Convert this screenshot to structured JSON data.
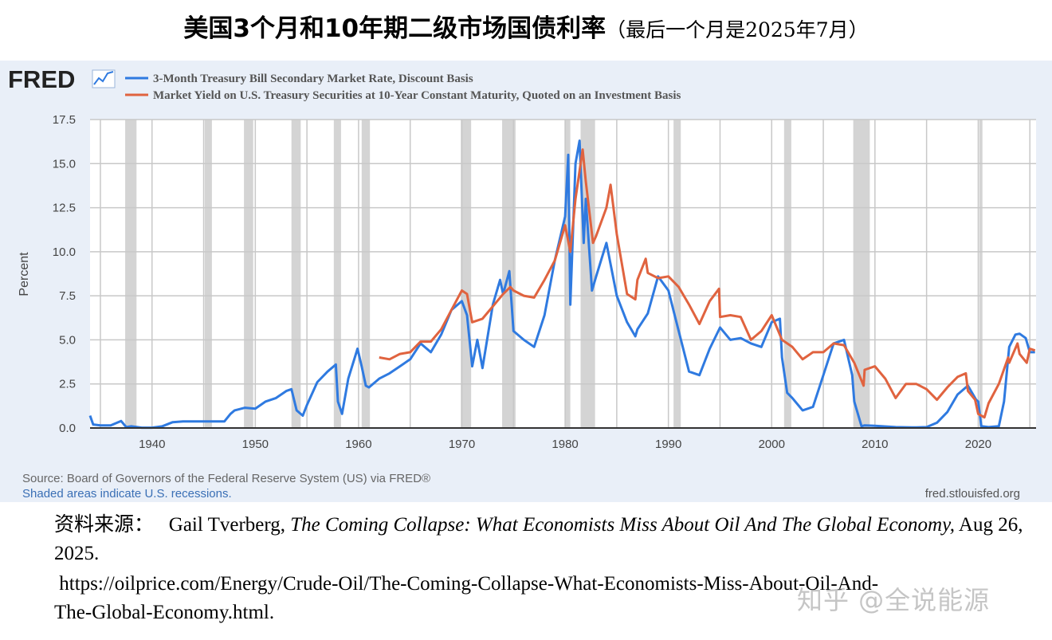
{
  "page_title": {
    "main": "美国3个月和10年期二级市场国债利率",
    "sub": "（最后一个月是2025年7月）"
  },
  "fred": {
    "logo_text": "FRED",
    "source_note": "Source: Board of Governors of the Federal Reserve System (US) via FRED®",
    "shading_note": "Shaded areas indicate U.S. recessions.",
    "site": "fred.stlouisfed.org"
  },
  "citation": {
    "label": "资料来源：",
    "author": "Gail Tverberg, ",
    "work_title": "The Coming Collapse: What Economists Miss About Oil And The Global Economy,",
    "date": " Aug 26, 2025.",
    "url_part1": "https://oilprice.com/Energy/Crude-Oil/The-Coming-Collapse-What-Economists-Miss-About-Oil-And-",
    "url_part2": "The-Global-Economy.html."
  },
  "watermark": "知乎 @全说能源",
  "chart_data": {
    "type": "line",
    "title": "",
    "xlabel": "",
    "ylabel": "Percent",
    "xlim": [
      1934,
      2025.6
    ],
    "ylim": [
      0,
      17.5
    ],
    "x_ticks": [
      1940,
      1950,
      1960,
      1970,
      1980,
      1990,
      2000,
      2010,
      2020
    ],
    "y_ticks": [
      "0.0",
      "2.5",
      "5.0",
      "7.5",
      "10.0",
      "12.5",
      "15.0",
      "17.5"
    ],
    "grid": true,
    "legend_position": "top-left",
    "recessions": [
      [
        1937.4,
        1938.5
      ],
      [
        1945.1,
        1945.8
      ],
      [
        1948.9,
        1949.8
      ],
      [
        1953.5,
        1954.4
      ],
      [
        1957.6,
        1958.3
      ],
      [
        1960.3,
        1961.1
      ],
      [
        1969.9,
        1970.9
      ],
      [
        1973.9,
        1975.2
      ],
      [
        1980.0,
        1980.5
      ],
      [
        1981.5,
        1982.9
      ],
      [
        1990.5,
        1991.2
      ],
      [
        2001.2,
        2001.9
      ],
      [
        2007.9,
        2009.5
      ],
      [
        2020.1,
        2020.3
      ]
    ],
    "series": [
      {
        "name": "3-Month Treasury Bill Secondary Market Rate, Discount Basis",
        "color": "#2f7ae0",
        "points": [
          [
            1934,
            0.7
          ],
          [
            1934.3,
            0.2
          ],
          [
            1935,
            0.15
          ],
          [
            1936,
            0.15
          ],
          [
            1937,
            0.4
          ],
          [
            1937.5,
            0.05
          ],
          [
            1938,
            0.1
          ],
          [
            1939,
            0.02
          ],
          [
            1940,
            0.02
          ],
          [
            1941,
            0.1
          ],
          [
            1942,
            0.33
          ],
          [
            1943,
            0.37
          ],
          [
            1945,
            0.37
          ],
          [
            1947,
            0.37
          ],
          [
            1947.6,
            0.8
          ],
          [
            1948,
            1.0
          ],
          [
            1949,
            1.15
          ],
          [
            1950,
            1.1
          ],
          [
            1951,
            1.5
          ],
          [
            1952,
            1.7
          ],
          [
            1953,
            2.1
          ],
          [
            1953.5,
            2.2
          ],
          [
            1954,
            1.0
          ],
          [
            1954.6,
            0.7
          ],
          [
            1955,
            1.3
          ],
          [
            1956,
            2.6
          ],
          [
            1957,
            3.2
          ],
          [
            1957.8,
            3.6
          ],
          [
            1958,
            1.5
          ],
          [
            1958.4,
            0.8
          ],
          [
            1959,
            2.8
          ],
          [
            1959.9,
            4.5
          ],
          [
            1960.3,
            3.5
          ],
          [
            1960.7,
            2.4
          ],
          [
            1961,
            2.3
          ],
          [
            1962,
            2.8
          ],
          [
            1963,
            3.1
          ],
          [
            1964,
            3.5
          ],
          [
            1965,
            3.9
          ],
          [
            1966,
            4.8
          ],
          [
            1967,
            4.3
          ],
          [
            1968,
            5.3
          ],
          [
            1969,
            6.7
          ],
          [
            1970,
            7.2
          ],
          [
            1970.5,
            6.4
          ],
          [
            1971,
            3.5
          ],
          [
            1971.5,
            5.0
          ],
          [
            1972,
            3.4
          ],
          [
            1973,
            7.0
          ],
          [
            1973.7,
            8.4
          ],
          [
            1974,
            7.6
          ],
          [
            1974.6,
            8.9
          ],
          [
            1975,
            5.5
          ],
          [
            1976,
            5.0
          ],
          [
            1977,
            4.6
          ],
          [
            1978,
            6.4
          ],
          [
            1979,
            9.5
          ],
          [
            1980,
            12.0
          ],
          [
            1980.3,
            15.5
          ],
          [
            1980.5,
            7.0
          ],
          [
            1981,
            15.0
          ],
          [
            1981.4,
            16.3
          ],
          [
            1981.8,
            10.5
          ],
          [
            1982,
            13.0
          ],
          [
            1982.6,
            7.8
          ],
          [
            1983,
            8.6
          ],
          [
            1984,
            10.5
          ],
          [
            1985,
            7.5
          ],
          [
            1986,
            6.0
          ],
          [
            1986.8,
            5.2
          ],
          [
            1987,
            5.6
          ],
          [
            1988,
            6.5
          ],
          [
            1989,
            8.6
          ],
          [
            1990,
            7.8
          ],
          [
            1991,
            5.5
          ],
          [
            1992,
            3.2
          ],
          [
            1993,
            3.0
          ],
          [
            1994,
            4.5
          ],
          [
            1995,
            5.7
          ],
          [
            1996,
            5.0
          ],
          [
            1997,
            5.1
          ],
          [
            1998,
            4.8
          ],
          [
            1999,
            4.6
          ],
          [
            2000,
            6.0
          ],
          [
            2000.8,
            6.2
          ],
          [
            2001,
            4.0
          ],
          [
            2001.5,
            2.0
          ],
          [
            2002,
            1.7
          ],
          [
            2003,
            1.0
          ],
          [
            2004,
            1.2
          ],
          [
            2005,
            3.0
          ],
          [
            2006,
            4.8
          ],
          [
            2007,
            5.0
          ],
          [
            2007.8,
            3.0
          ],
          [
            2008,
            1.5
          ],
          [
            2008.7,
            0.1
          ],
          [
            2009,
            0.15
          ],
          [
            2010,
            0.12
          ],
          [
            2012,
            0.05
          ],
          [
            2014,
            0.03
          ],
          [
            2015,
            0.05
          ],
          [
            2016,
            0.3
          ],
          [
            2017,
            0.9
          ],
          [
            2018,
            1.9
          ],
          [
            2019,
            2.4
          ],
          [
            2019.8,
            1.6
          ],
          [
            2020,
            1.5
          ],
          [
            2020.3,
            0.1
          ],
          [
            2021,
            0.05
          ],
          [
            2022,
            0.1
          ],
          [
            2022.5,
            1.5
          ],
          [
            2023,
            4.6
          ],
          [
            2023.6,
            5.3
          ],
          [
            2024,
            5.35
          ],
          [
            2024.6,
            5.1
          ],
          [
            2025,
            4.3
          ],
          [
            2025.5,
            4.3
          ]
        ]
      },
      {
        "name": "Market Yield on U.S. Treasury Securities at 10-Year Constant Maturity, Quoted on an Investment Basis",
        "color": "#e0633f",
        "points": [
          [
            1962,
            4.0
          ],
          [
            1963,
            3.9
          ],
          [
            1964,
            4.2
          ],
          [
            1965,
            4.3
          ],
          [
            1966,
            4.9
          ],
          [
            1967,
            4.9
          ],
          [
            1968,
            5.6
          ],
          [
            1969,
            6.7
          ],
          [
            1970,
            7.8
          ],
          [
            1970.5,
            7.6
          ],
          [
            1971,
            6.0
          ],
          [
            1972,
            6.2
          ],
          [
            1973,
            6.9
          ],
          [
            1974,
            7.6
          ],
          [
            1974.7,
            8.0
          ],
          [
            1975,
            7.8
          ],
          [
            1976,
            7.5
          ],
          [
            1977,
            7.4
          ],
          [
            1978,
            8.4
          ],
          [
            1979,
            9.5
          ],
          [
            1980,
            11.5
          ],
          [
            1980.5,
            10.0
          ],
          [
            1981,
            13.0
          ],
          [
            1981.7,
            15.8
          ],
          [
            1982,
            14.0
          ],
          [
            1982.7,
            10.5
          ],
          [
            1983,
            10.9
          ],
          [
            1984,
            12.5
          ],
          [
            1984.4,
            13.8
          ],
          [
            1985,
            11.0
          ],
          [
            1986,
            7.6
          ],
          [
            1986.8,
            7.3
          ],
          [
            1987,
            8.4
          ],
          [
            1987.8,
            9.6
          ],
          [
            1988,
            8.8
          ],
          [
            1989,
            8.5
          ],
          [
            1990,
            8.6
          ],
          [
            1991,
            8.0
          ],
          [
            1992,
            7.0
          ],
          [
            1993,
            5.9
          ],
          [
            1994,
            7.2
          ],
          [
            1994.9,
            7.9
          ],
          [
            1995,
            6.3
          ],
          [
            1996,
            6.4
          ],
          [
            1997,
            6.3
          ],
          [
            1998,
            5.0
          ],
          [
            1999,
            5.5
          ],
          [
            2000,
            6.4
          ],
          [
            2001,
            5.0
          ],
          [
            2002,
            4.6
          ],
          [
            2003,
            3.9
          ],
          [
            2004,
            4.3
          ],
          [
            2005,
            4.3
          ],
          [
            2006,
            4.8
          ],
          [
            2007,
            4.7
          ],
          [
            2008,
            3.7
          ],
          [
            2008.9,
            2.4
          ],
          [
            2009,
            3.3
          ],
          [
            2010,
            3.5
          ],
          [
            2011,
            2.8
          ],
          [
            2012,
            1.7
          ],
          [
            2013,
            2.5
          ],
          [
            2014,
            2.5
          ],
          [
            2015,
            2.2
          ],
          [
            2016,
            1.6
          ],
          [
            2017,
            2.3
          ],
          [
            2018,
            2.9
          ],
          [
            2018.8,
            3.1
          ],
          [
            2019,
            2.1
          ],
          [
            2019.7,
            1.6
          ],
          [
            2020,
            0.8
          ],
          [
            2020.6,
            0.6
          ],
          [
            2021,
            1.4
          ],
          [
            2022,
            2.5
          ],
          [
            2022.9,
            4.0
          ],
          [
            2023,
            3.7
          ],
          [
            2023.8,
            4.8
          ],
          [
            2024,
            4.2
          ],
          [
            2024.7,
            3.7
          ],
          [
            2025,
            4.5
          ],
          [
            2025.5,
            4.4
          ]
        ]
      }
    ]
  }
}
